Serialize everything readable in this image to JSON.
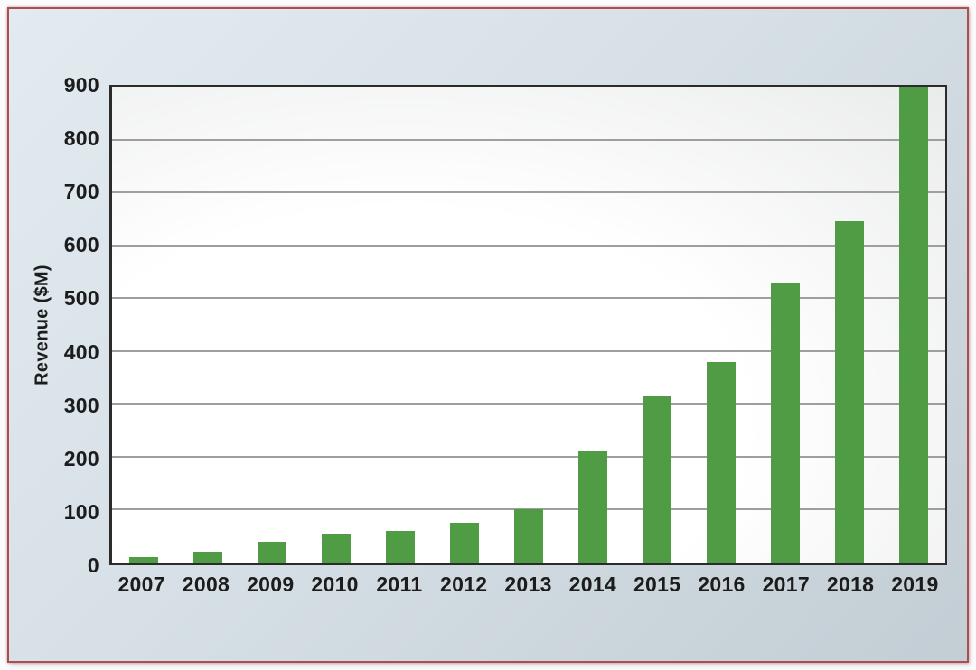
{
  "figure": {
    "margin_background": "#fcfbfb",
    "frame_border_color": "#a84e54",
    "frame_background_start": "#e2ebf0",
    "frame_background_end": "#c3cdd4"
  },
  "chart_data": {
    "type": "bar",
    "title": "",
    "xlabel": "",
    "ylabel": "Revenue ($M)",
    "categories": [
      "2007",
      "2008",
      "2009",
      "2010",
      "2011",
      "2012",
      "2013",
      "2014",
      "2015",
      "2016",
      "2017",
      "2018",
      "2019"
    ],
    "values": [
      10,
      20,
      40,
      55,
      60,
      75,
      100,
      210,
      315,
      380,
      530,
      645,
      900
    ],
    "ylim": [
      0,
      900
    ],
    "yticks": [
      0,
      100,
      200,
      300,
      400,
      500,
      600,
      700,
      800,
      900
    ],
    "grid": true,
    "legend": null,
    "bar_color": "#4f9c45",
    "gridline_color": "#9e9e9e",
    "axis_color": "#2b2b2b",
    "text_color": "#1c1c1c"
  }
}
